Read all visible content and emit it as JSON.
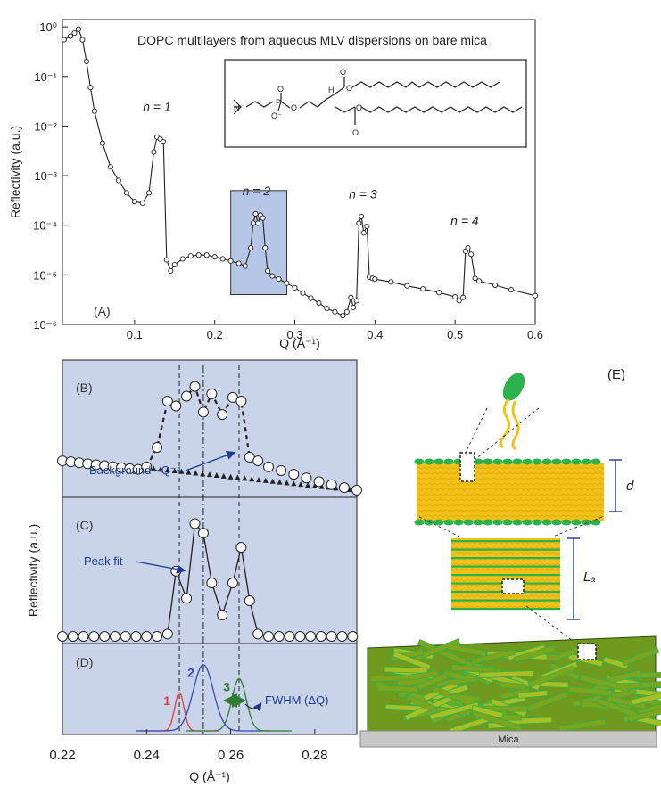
{
  "chart_data": [
    {
      "panel": "A",
      "type": "line",
      "title": "DOPC multilayers from aqueous MLV dispersions on bare mica",
      "xlabel": "Q (Å⁻¹)",
      "ylabel": "Reflectivity (a.u.)",
      "xscale": "linear",
      "yscale": "log",
      "xlim": [
        0.01,
        0.6
      ],
      "ylim": [
        1e-06,
        1.4
      ],
      "xticks": [
        "0.1",
        "0.2",
        "0.3",
        "0.4",
        "0.5",
        "0.6"
      ],
      "yticks": [
        "10⁰",
        "10⁻¹",
        "10⁻²",
        "10⁻³",
        "10⁻⁴",
        "10⁻⁵",
        "10⁻⁶"
      ],
      "panel_label": "(A)",
      "annotations": [
        {
          "text": "n = 1",
          "x": 0.128,
          "y": 0.02
        },
        {
          "text": "n = 2",
          "x": 0.252,
          "y": 0.0004
        },
        {
          "text": "n = 3",
          "x": 0.385,
          "y": 0.00035
        },
        {
          "text": "n = 4",
          "x": 0.512,
          "y": 0.0001
        }
      ],
      "highlight_region": {
        "x": [
          0.22,
          0.29
        ],
        "y": [
          4e-06,
          0.0005
        ]
      },
      "series": [
        {
          "x": [
            0.012,
            0.02,
            0.025,
            0.03,
            0.035,
            0.04,
            0.045,
            0.05,
            0.06,
            0.07,
            0.08,
            0.09,
            0.1,
            0.11,
            0.118,
            0.124,
            0.128,
            0.132,
            0.136,
            0.14,
            0.145,
            0.15,
            0.16,
            0.17,
            0.18,
            0.19,
            0.2,
            0.21,
            0.22,
            0.23,
            0.238,
            0.245,
            0.248,
            0.251,
            0.254,
            0.257,
            0.26,
            0.263,
            0.266,
            0.272,
            0.28,
            0.29,
            0.3,
            0.31,
            0.32,
            0.33,
            0.34,
            0.35,
            0.36,
            0.365,
            0.37,
            0.373,
            0.377,
            0.38,
            0.383,
            0.386,
            0.39,
            0.393,
            0.397,
            0.4,
            0.42,
            0.44,
            0.46,
            0.48,
            0.5,
            0.505,
            0.51,
            0.513,
            0.516,
            0.52,
            0.525,
            0.53,
            0.55,
            0.57,
            0.6
          ],
          "y": [
            0.55,
            0.65,
            0.75,
            0.9,
            0.55,
            0.2,
            0.06,
            0.02,
            0.0045,
            0.0015,
            0.0008,
            0.00045,
            0.0003,
            0.00028,
            0.00045,
            0.003,
            0.006,
            0.0055,
            0.0048,
            2e-05,
            1.2e-05,
            1.6e-05,
            2.1e-05,
            2.4e-05,
            2.5e-05,
            2.5e-05,
            2.3e-05,
            2.1e-05,
            1.9e-05,
            1.7e-05,
            1.5e-05,
            3.5e-05,
            0.00011,
            0.00017,
            0.00011,
            0.00016,
            0.00014,
            3.5e-05,
            1.2e-05,
            9.5e-06,
            8.2e-06,
            6.8e-06,
            5.5e-06,
            4.3e-06,
            3.4e-06,
            2.7e-06,
            2.1e-06,
            1.8e-06,
            1.5e-06,
            1.8e-06,
            3.5e-06,
            2.2e-06,
            3e-06,
            0.00011,
            0.00015,
            7e-05,
            9.5e-05,
            9e-06,
            8.5e-06,
            8.2e-06,
            7.2e-06,
            6e-06,
            5.2e-06,
            4.4e-06,
            3.6e-06,
            3e-06,
            3.5e-06,
            3e-05,
            3.5e-05,
            2.6e-05,
            8.5e-06,
            7.5e-06,
            6.2e-06,
            5e-06,
            3.8e-06
          ]
        }
      ]
    },
    {
      "panel": "B",
      "type": "scatter",
      "xlim": [
        0.22,
        0.29
      ],
      "panel_label": "(B)",
      "annotation": "Background ~Q⁻⁴",
      "series": [
        {
          "x": [
            0.22,
            0.222,
            0.224,
            0.226,
            0.228,
            0.23,
            0.232,
            0.234,
            0.236,
            0.238,
            0.24,
            0.2425,
            0.245,
            0.247,
            0.2495,
            0.2515,
            0.2535,
            0.2555,
            0.258,
            0.2605,
            0.2625,
            0.2645,
            0.2665,
            0.269,
            0.272,
            0.275,
            0.278,
            0.281,
            0.284,
            0.287,
            0.29
          ],
          "y": [
            0.27,
            0.262,
            0.254,
            0.246,
            0.238,
            0.23,
            0.222,
            0.214,
            0.206,
            0.2,
            0.22,
            0.38,
            0.76,
            0.72,
            0.8,
            0.88,
            0.67,
            0.82,
            0.65,
            0.79,
            0.76,
            0.3,
            0.27,
            0.22,
            0.19,
            0.16,
            0.13,
            0.1,
            0.075,
            0.05,
            0.03
          ]
        }
      ],
      "background": {
        "x": [
          0.24,
          0.29
        ],
        "y": [
          0.215,
          0.03
        ]
      }
    },
    {
      "panel": "C",
      "type": "line",
      "xlim": [
        0.22,
        0.29
      ],
      "panel_label": "(C)",
      "annotation": "Peak fit",
      "ylabel": "Reflectivity (a.u.)",
      "series": [
        {
          "x": [
            0.22,
            0.2225,
            0.225,
            0.2275,
            0.23,
            0.2325,
            0.235,
            0.2375,
            0.24,
            0.2425,
            0.245,
            0.247,
            0.2495,
            0.2515,
            0.2535,
            0.2555,
            0.258,
            0.2605,
            0.2625,
            0.2645,
            0.2665,
            0.269,
            0.2715,
            0.274,
            0.2765,
            0.279,
            0.2815,
            0.284,
            0.2865,
            0.289
          ],
          "y": [
            0.0,
            0.0,
            0.0,
            0.0,
            0.0,
            0.0,
            0.0,
            0.0,
            0.0,
            0.0,
            0.02,
            0.55,
            0.32,
            0.95,
            0.87,
            0.45,
            0.18,
            0.45,
            0.75,
            0.3,
            0.02,
            0.0,
            0.0,
            0.0,
            0.0,
            0.0,
            0.0,
            0.0,
            0.0,
            0.0
          ]
        }
      ]
    },
    {
      "panel": "D",
      "type": "line",
      "xlim": [
        0.22,
        0.29
      ],
      "xlabel": "Q (Å⁻¹)",
      "xticks": [
        "0.22",
        "0.24",
        "0.26",
        "0.28"
      ],
      "panel_label": "(D)",
      "annotation": "FWHM (ΔQ)",
      "series": [
        {
          "name": "1",
          "color": "#e53935",
          "center": 0.2478,
          "sigma": 0.0011,
          "height": 0.55
        },
        {
          "name": "2",
          "color": "#3949ab",
          "center": 0.2535,
          "sigma": 0.0024,
          "height": 0.95
        },
        {
          "name": "3",
          "color": "#2e7d32",
          "center": 0.262,
          "sigma": 0.0017,
          "height": 0.75
        }
      ]
    }
  ],
  "schematic": {
    "panel_label": "(E)",
    "d_label": "d",
    "la_label": "Lₐ",
    "substrate_label": "Mica"
  },
  "colors": {
    "panel_bg": "#c9d4ea",
    "highlight": "#8fa8d9",
    "lipid_head": "#2bb24c",
    "lipid_tail": "#f2c21a",
    "arrow_blue": "#1f3a8a",
    "mica": "#c8c8c8"
  }
}
